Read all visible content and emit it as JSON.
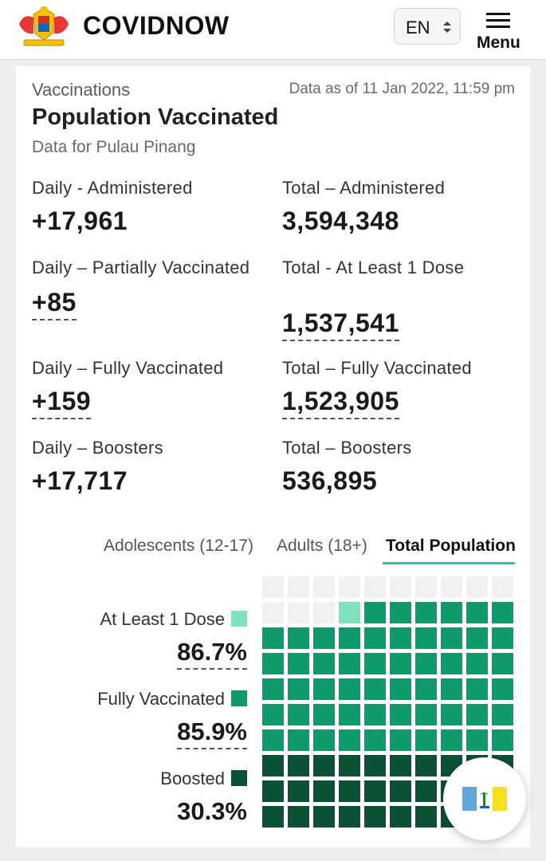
{
  "header": {
    "brand": "COVIDNOW",
    "language": "EN",
    "menu_label": "Menu",
    "logo_icon": "malaysia-coat-of-arms-icon"
  },
  "card": {
    "section_label": "Vaccinations",
    "data_as_of": "Data as of 11 Jan 2022, 11:59 pm",
    "title": "Population Vaccinated",
    "subtitle": "Data for Pulau Pinang"
  },
  "stats": {
    "daily_administered": {
      "label": "Daily - Administered",
      "value": "+17,961"
    },
    "total_administered": {
      "label": "Total – Administered",
      "value": "3,594,348"
    },
    "daily_partial": {
      "label": "Daily – Partially Vaccinated",
      "value": "+85"
    },
    "total_at_least_1": {
      "label": "Total - At Least 1 Dose",
      "value": "1,537,541"
    },
    "daily_fully": {
      "label": "Daily – Fully Vaccinated",
      "value": "+159"
    },
    "total_fully": {
      "label": "Total – Fully Vaccinated",
      "value": "1,523,905"
    },
    "daily_boosters": {
      "label": "Daily – Boosters",
      "value": "+17,717"
    },
    "total_boosters": {
      "label": "Total – Boosters",
      "value": "536,895"
    }
  },
  "tabs": [
    {
      "label": "Adolescents (12-17)",
      "active": false
    },
    {
      "label": "Adults (18+)",
      "active": false
    },
    {
      "label": "Total Population",
      "active": true
    }
  ],
  "legend": {
    "at_least_1": {
      "label": "At Least 1 Dose",
      "value": "86.7%",
      "color": "#7ee2bd"
    },
    "fully": {
      "label": "Fully Vaccinated",
      "value": "85.9%",
      "color": "#0e9a6c"
    },
    "boosted": {
      "label": "Boosted",
      "value": "30.3%",
      "color": "#0a5136"
    }
  },
  "chart_data": {
    "type": "waffle",
    "grid": [
      10,
      10
    ],
    "series": [
      {
        "name": "At Least 1 Dose",
        "value": 86.7,
        "color": "#7ee2bd"
      },
      {
        "name": "Fully Vaccinated",
        "value": 85.9,
        "color": "#0e9a6c"
      },
      {
        "name": "Boosted",
        "value": 30.3,
        "color": "#0a5136"
      }
    ],
    "empty_color": "#f0f1f3"
  },
  "fab": {
    "icon": "pulau-pinang-flag-icon"
  }
}
